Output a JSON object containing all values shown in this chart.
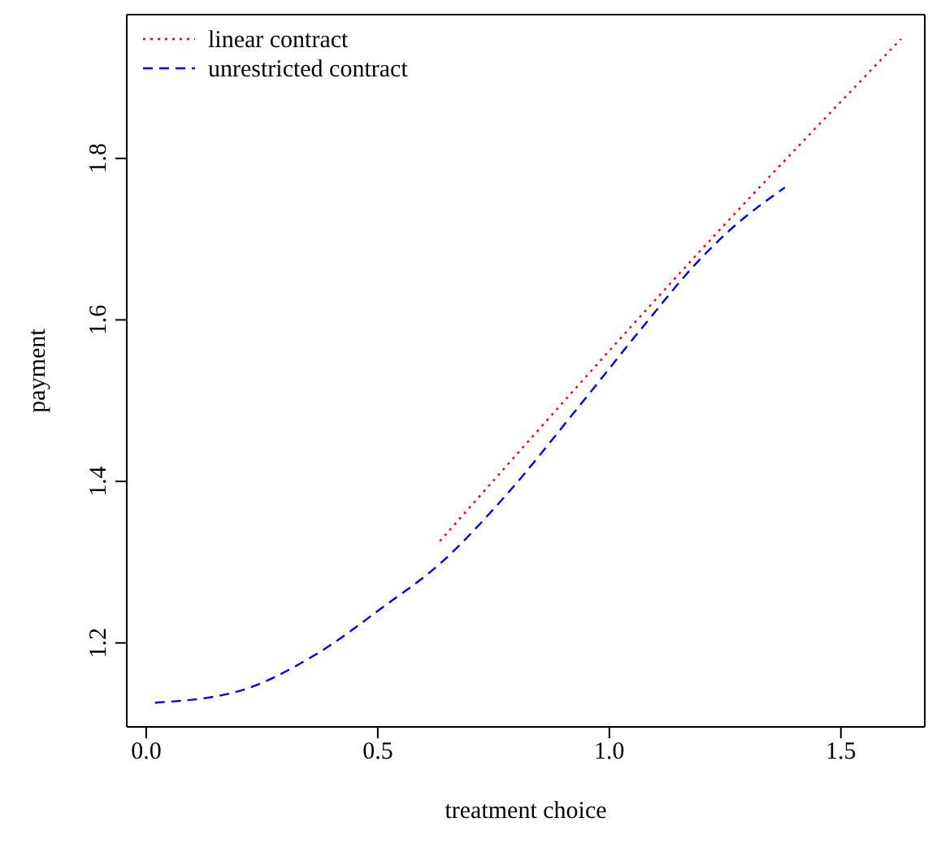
{
  "chart_data": {
    "type": "line",
    "xlabel": "treatment choice",
    "ylabel": "payment",
    "xlim": [
      -0.042,
      1.681
    ],
    "ylim": [
      1.096,
      1.978
    ],
    "xticks": [
      {
        "value": 0,
        "label": "0.0"
      },
      {
        "value": 0.5,
        "label": "0.5"
      },
      {
        "value": 1,
        "label": "1.0"
      },
      {
        "value": 1.5,
        "label": "1.5"
      }
    ],
    "yticks": [
      1.2,
      1.4,
      1.6,
      1.8
    ],
    "legend": "top left",
    "marker": "none",
    "series": [
      {
        "name": "linear contract",
        "color": "#ff0000",
        "line_style": "dotted",
        "x": [
          0.634,
          1.244,
          1.63
        ],
        "values": [
          1.326,
          1.715,
          1.948
        ]
      },
      {
        "name": "unrestricted contract",
        "color": "#0000ff",
        "line_style": "dashed",
        "x": [
          0.019,
          0.192,
          0.367,
          0.508,
          0.636,
          0.777,
          0.929,
          1.069,
          1.186,
          1.256,
          1.379
        ],
        "values": [
          1.126,
          1.139,
          1.186,
          1.243,
          1.299,
          1.383,
          1.489,
          1.589,
          1.669,
          1.709,
          1.764
        ]
      }
    ]
  }
}
